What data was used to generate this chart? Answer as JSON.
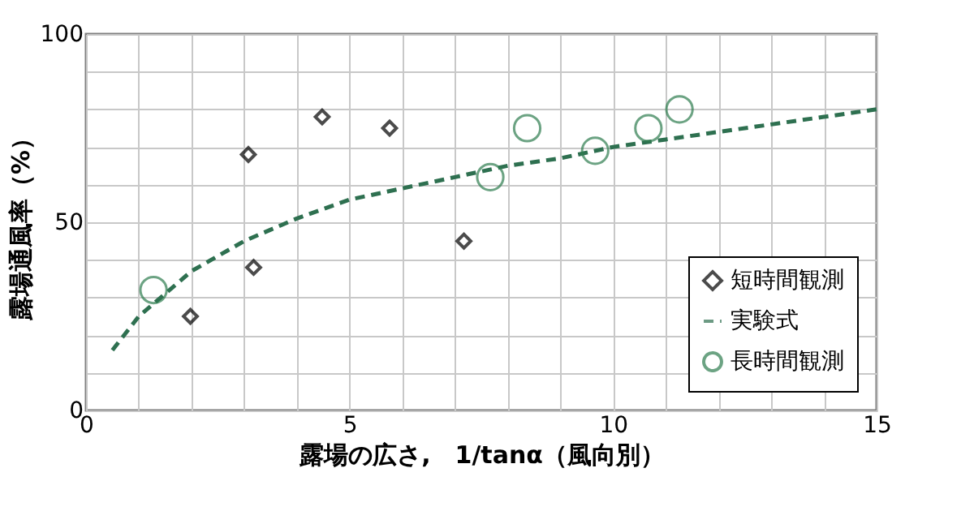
{
  "chart_data": {
    "type": "scatter",
    "xlabel": "露場の広さ,　1/tanα（風向別）",
    "ylabel": "露場通風率（%）",
    "xlim": [
      0,
      15
    ],
    "xticks": [
      0,
      {
        "value": 1,
        "label": null
      },
      {
        "value": 2,
        "label": null
      },
      {
        "value": 3,
        "label": null
      },
      {
        "value": 4,
        "label": null
      },
      5,
      {
        "value": 6,
        "label": null
      },
      {
        "value": 7,
        "label": null
      },
      {
        "value": 8,
        "label": null
      },
      {
        "value": 9,
        "label": null
      },
      10,
      {
        "value": 11,
        "label": null
      },
      {
        "value": 12,
        "label": null
      },
      {
        "value": 13,
        "label": null
      },
      {
        "value": 14,
        "label": null
      },
      15
    ],
    "ylim": [
      0,
      100
    ],
    "yticks": [
      0,
      {
        "value": 10,
        "label": null
      },
      {
        "value": 20,
        "label": null
      },
      {
        "value": 30,
        "label": null
      },
      {
        "value": 40,
        "label": null
      },
      50,
      {
        "value": 60,
        "label": null
      },
      {
        "value": 70,
        "label": null
      },
      {
        "value": 80,
        "label": null
      },
      {
        "value": 90,
        "label": null
      },
      100
    ],
    "grid": true,
    "legend": "bottom right",
    "series": [
      {
        "name": "短時間観測",
        "type": "scatter",
        "marker": "diamond",
        "color": "#000000",
        "x": [
          1.98,
          3.08,
          3.18,
          4.48,
          5.76,
          7.17
        ],
        "values": [
          25,
          68,
          38,
          78,
          75,
          45
        ]
      },
      {
        "name": "実験式",
        "type": "line",
        "line_style": "dashed",
        "color": "#2e7050",
        "x": [
          0.5,
          1,
          2,
          3,
          4,
          5,
          6,
          7,
          8,
          9,
          10,
          11,
          12,
          13,
          14,
          15
        ],
        "values": [
          16,
          25,
          37,
          45,
          51,
          56,
          59,
          62,
          65,
          67,
          70,
          72,
          74,
          76,
          78,
          80
        ]
      },
      {
        "name": "長時間観測",
        "type": "scatter",
        "marker": "circle",
        "color": "#2e7d4f",
        "x": [
          1.28,
          7.67,
          8.37,
          9.66,
          10.67,
          11.26
        ],
        "values": [
          32,
          62,
          75,
          69,
          75,
          80
        ]
      }
    ]
  }
}
